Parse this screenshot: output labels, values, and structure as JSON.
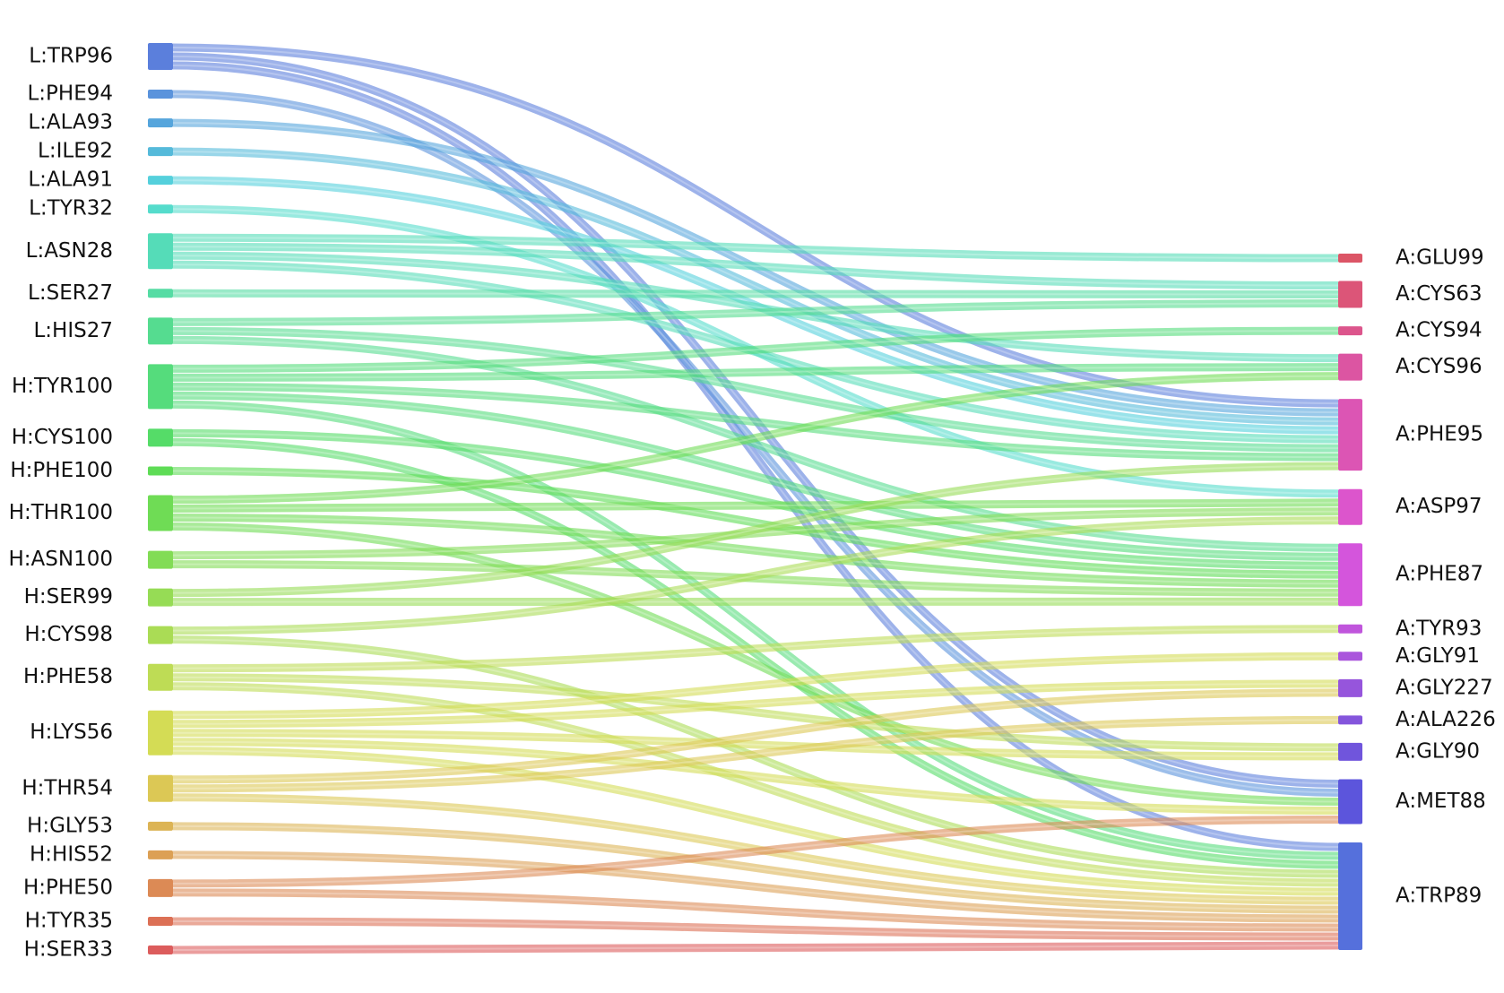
{
  "chart_data": {
    "type": "sankey",
    "sources": [
      {
        "label": "L:TRP96",
        "color": "#5b7fdc"
      },
      {
        "label": "L:PHE94",
        "color": "#5a93dc"
      },
      {
        "label": "L:ALA93",
        "color": "#55a5dc"
      },
      {
        "label": "L:ILE92",
        "color": "#55bada"
      },
      {
        "label": "L:ALA91",
        "color": "#55d0dc"
      },
      {
        "label": "L:TYR32",
        "color": "#55dccc"
      },
      {
        "label": "L:ASN28",
        "color": "#55dcb8"
      },
      {
        "label": "L:SER27",
        "color": "#55dca4"
      },
      {
        "label": "L:HIS27",
        "color": "#55dc90"
      },
      {
        "label": "H:TYR100",
        "color": "#55dc7c"
      },
      {
        "label": "H:CYS100",
        "color": "#55dc68"
      },
      {
        "label": "H:PHE100",
        "color": "#5edc55"
      },
      {
        "label": "H:THR100",
        "color": "#6fdc55"
      },
      {
        "label": "H:ASN100",
        "color": "#82dc55"
      },
      {
        "label": "H:SER99",
        "color": "#96dc55"
      },
      {
        "label": "H:CYS98",
        "color": "#aadc55"
      },
      {
        "label": "H:PHE58",
        "color": "#bedc55"
      },
      {
        "label": "H:LYS56",
        "color": "#d4dc55"
      },
      {
        "label": "H:THR54",
        "color": "#dcc855"
      },
      {
        "label": "H:GLY53",
        "color": "#dcb455"
      },
      {
        "label": "H:HIS52",
        "color": "#dca055"
      },
      {
        "label": "H:PHE50",
        "color": "#dc8a55"
      },
      {
        "label": "H:TYR35",
        "color": "#dc7055"
      },
      {
        "label": "H:SER33",
        "color": "#dc5c5c"
      }
    ],
    "targets": [
      {
        "label": "A:GLU99",
        "color": "#dc5566"
      },
      {
        "label": "A:CYS63",
        "color": "#dc5578"
      },
      {
        "label": "A:CYS94",
        "color": "#dc558c"
      },
      {
        "label": "A:CYS96",
        "color": "#dc55a2"
      },
      {
        "label": "A:PHE95",
        "color": "#dc55b4"
      },
      {
        "label": "A:ASP97",
        "color": "#dc55cc"
      },
      {
        "label": "A:PHE87",
        "color": "#d455dc"
      },
      {
        "label": "A:TYR93",
        "color": "#c055dc"
      },
      {
        "label": "A:GLY91",
        "color": "#aa55dc"
      },
      {
        "label": "A:GLY227",
        "color": "#9655dc"
      },
      {
        "label": "A:ALA226",
        "color": "#8455dc"
      },
      {
        "label": "A:GLY90",
        "color": "#7055dc"
      },
      {
        "label": "A:MET88",
        "color": "#5c55dc"
      },
      {
        "label": "A:TRP89",
        "color": "#5570dc"
      }
    ],
    "links": [
      {
        "source": 0,
        "target": 4,
        "value": 1
      },
      {
        "source": 0,
        "target": 12,
        "value": 1
      },
      {
        "source": 0,
        "target": 13,
        "value": 1
      },
      {
        "source": 1,
        "target": 12,
        "value": 1
      },
      {
        "source": 2,
        "target": 4,
        "value": 1
      },
      {
        "source": 3,
        "target": 4,
        "value": 1
      },
      {
        "source": 4,
        "target": 4,
        "value": 1
      },
      {
        "source": 5,
        "target": 5,
        "value": 1
      },
      {
        "source": 6,
        "target": 0,
        "value": 1
      },
      {
        "source": 6,
        "target": 1,
        "value": 1
      },
      {
        "source": 6,
        "target": 3,
        "value": 1
      },
      {
        "source": 6,
        "target": 4,
        "value": 1
      },
      {
        "source": 7,
        "target": 1,
        "value": 1
      },
      {
        "source": 8,
        "target": 1,
        "value": 1
      },
      {
        "source": 8,
        "target": 4,
        "value": 1
      },
      {
        "source": 8,
        "target": 6,
        "value": 1
      },
      {
        "source": 9,
        "target": 2,
        "value": 1
      },
      {
        "source": 9,
        "target": 3,
        "value": 1
      },
      {
        "source": 9,
        "target": 4,
        "value": 1
      },
      {
        "source": 9,
        "target": 6,
        "value": 1
      },
      {
        "source": 9,
        "target": 13,
        "value": 1
      },
      {
        "source": 10,
        "target": 6,
        "value": 1
      },
      {
        "source": 10,
        "target": 13,
        "value": 1
      },
      {
        "source": 11,
        "target": 6,
        "value": 1
      },
      {
        "source": 12,
        "target": 3,
        "value": 1
      },
      {
        "source": 12,
        "target": 5,
        "value": 1
      },
      {
        "source": 12,
        "target": 6,
        "value": 1
      },
      {
        "source": 12,
        "target": 12,
        "value": 1
      },
      {
        "source": 13,
        "target": 5,
        "value": 1
      },
      {
        "source": 13,
        "target": 6,
        "value": 1
      },
      {
        "source": 14,
        "target": 4,
        "value": 1
      },
      {
        "source": 14,
        "target": 6,
        "value": 1
      },
      {
        "source": 15,
        "target": 5,
        "value": 1
      },
      {
        "source": 15,
        "target": 13,
        "value": 1
      },
      {
        "source": 16,
        "target": 7,
        "value": 1
      },
      {
        "source": 16,
        "target": 11,
        "value": 1
      },
      {
        "source": 16,
        "target": 13,
        "value": 1
      },
      {
        "source": 17,
        "target": 8,
        "value": 1
      },
      {
        "source": 17,
        "target": 9,
        "value": 1
      },
      {
        "source": 17,
        "target": 11,
        "value": 1
      },
      {
        "source": 17,
        "target": 12,
        "value": 1
      },
      {
        "source": 17,
        "target": 13,
        "value": 1
      },
      {
        "source": 18,
        "target": 9,
        "value": 1
      },
      {
        "source": 18,
        "target": 10,
        "value": 1
      },
      {
        "source": 18,
        "target": 13,
        "value": 1
      },
      {
        "source": 19,
        "target": 13,
        "value": 1
      },
      {
        "source": 20,
        "target": 13,
        "value": 1
      },
      {
        "source": 21,
        "target": 12,
        "value": 1
      },
      {
        "source": 21,
        "target": 13,
        "value": 1
      },
      {
        "source": 22,
        "target": 13,
        "value": 1
      },
      {
        "source": 23,
        "target": 13,
        "value": 1
      }
    ]
  }
}
